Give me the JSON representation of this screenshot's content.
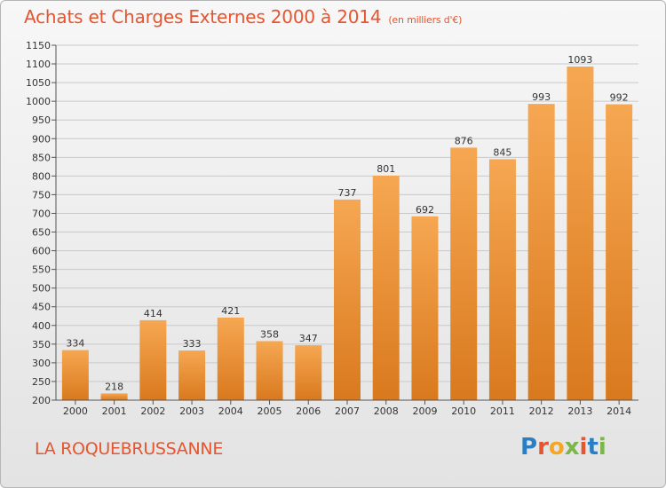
{
  "header": {
    "title": "Achats et Charges Externes 2000 à 2014",
    "subtitle": "(en milliers d'€)"
  },
  "footer": {
    "town": "LA ROQUEBRUSSANNE",
    "logo": "Proxiti"
  },
  "colors": {
    "bar_top": "#f6a752",
    "bar_bottom": "#d9791e",
    "title": "#e5552f",
    "logo_letters": [
      "#2a7fc4",
      "#e5552f",
      "#f5a623",
      "#7ab648",
      "#e5552f",
      "#2a7fc4",
      "#7ab648"
    ]
  },
  "chart_data": {
    "type": "bar",
    "title": "Achats et Charges Externes 2000 à 2014",
    "subtitle": "(en milliers d'€)",
    "categories": [
      "2000",
      "2001",
      "2002",
      "2003",
      "2004",
      "2005",
      "2006",
      "2007",
      "2008",
      "2009",
      "2010",
      "2011",
      "2012",
      "2013",
      "2014"
    ],
    "values": [
      334,
      218,
      414,
      333,
      421,
      358,
      347,
      737,
      801,
      692,
      876,
      845,
      993,
      1093,
      992
    ],
    "ylim": [
      200,
      1150
    ],
    "yticks": [
      200,
      250,
      300,
      350,
      400,
      450,
      500,
      550,
      600,
      650,
      700,
      750,
      800,
      850,
      900,
      950,
      1000,
      1050,
      1100,
      1150
    ],
    "grid": true,
    "data_labels": true
  }
}
